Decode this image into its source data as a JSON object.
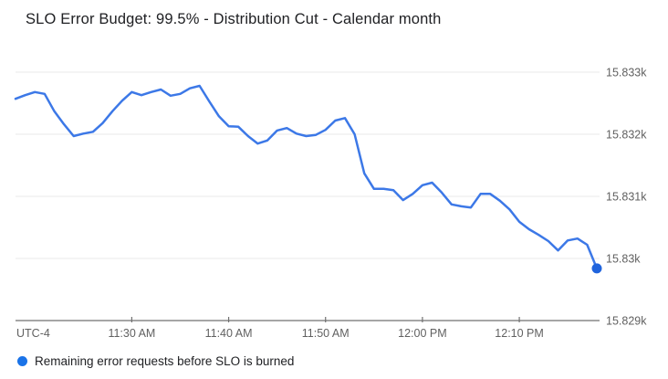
{
  "header": {
    "title": "SLO Error Budget: 99.5% - Distribution Cut - Calendar month"
  },
  "legend": {
    "label": "Remaining error requests before SLO is burned"
  },
  "axes": {
    "timezone_label": "UTC-4"
  },
  "colors": {
    "line": "#3c78e7",
    "endpoint_marker": "#2064dd",
    "legend_marker": "#1a73e8",
    "gridline": "#e8e8e8",
    "axis_line": "#707070",
    "tick_mark": "#707070",
    "tick_label": "#616161",
    "title_text": "#202124",
    "legend_text": "#202124"
  },
  "chart_data": {
    "type": "line",
    "title": "SLO Error Budget: 99.5% - Distribution Cut - Calendar month",
    "xlabel": "",
    "ylabel": "",
    "timezone_note": "UTC-4",
    "grid": true,
    "legend_position": "bottom-left",
    "x_start": "11:18 AM",
    "x_end": "12:18 PM",
    "x_interval_minutes": 1,
    "x_span_minutes": 60,
    "x_ticks": [
      {
        "label": "11:30 AM",
        "minute": 12
      },
      {
        "label": "11:40 AM",
        "minute": 22
      },
      {
        "label": "11:50 AM",
        "minute": 32
      },
      {
        "label": "12:00 PM",
        "minute": 42
      },
      {
        "label": "12:10 PM",
        "minute": 52
      }
    ],
    "y_ticks": [
      {
        "label": "15.833k",
        "value": 15833
      },
      {
        "label": "15.832k",
        "value": 15832
      },
      {
        "label": "15.831k",
        "value": 15831
      },
      {
        "label": "15.83k",
        "value": 15830
      },
      {
        "label": "15.829k",
        "value": 15829
      }
    ],
    "ylim": [
      15829,
      15833.2
    ],
    "series": [
      {
        "name": "Remaining error requests before SLO is burned",
        "values": [
          15832.57,
          15832.63,
          15832.68,
          15832.65,
          15832.37,
          15832.16,
          15831.97,
          15832.01,
          15832.04,
          15832.18,
          15832.37,
          15832.54,
          15832.68,
          15832.63,
          15832.68,
          15832.72,
          15832.62,
          15832.65,
          15832.74,
          15832.78,
          15832.53,
          15832.29,
          15832.13,
          15832.12,
          15831.97,
          15831.85,
          15831.9,
          15832.06,
          15832.1,
          15832.01,
          15831.97,
          15831.99,
          15832.07,
          15832.22,
          15832.26,
          15832.0,
          15831.37,
          15831.12,
          15831.12,
          15831.1,
          15830.94,
          15831.04,
          15831.18,
          15831.22,
          15831.06,
          15830.87,
          15830.84,
          15830.82,
          15831.04,
          15831.04,
          15830.93,
          15830.79,
          15830.59,
          15830.47,
          15830.38,
          15830.28,
          15830.13,
          15830.29,
          15830.32,
          15830.22,
          15829.84
        ]
      }
    ],
    "last_value": 15829.84,
    "last_point_marker": true
  }
}
